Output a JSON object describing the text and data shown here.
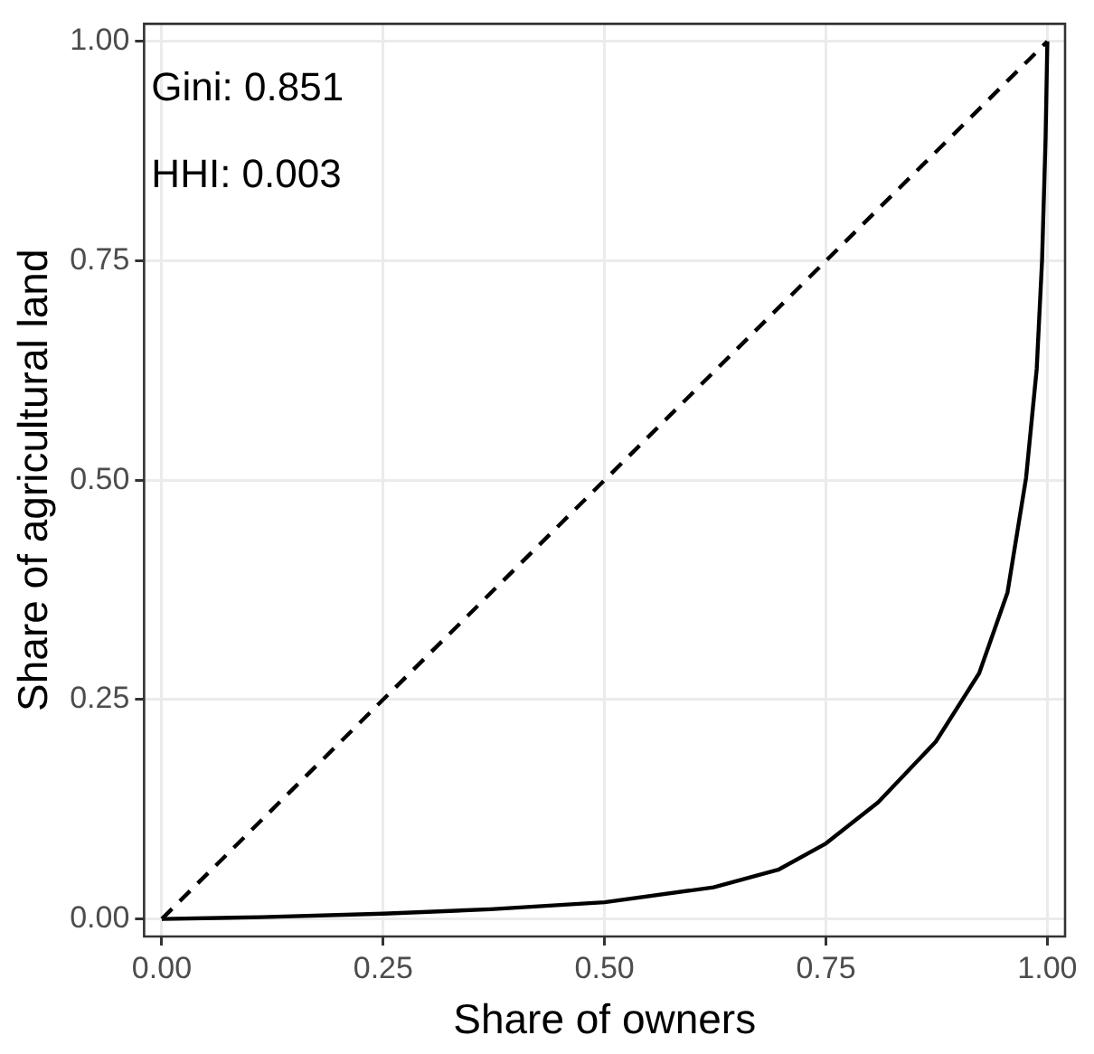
{
  "chart_data": {
    "type": "line",
    "xlabel": "Share of owners",
    "ylabel": "Share of agricultural land",
    "annotations": [
      "Gini: 0.851",
      "HHI: 0.003"
    ],
    "series": [
      {
        "color": "#000000",
        "line_style": "dashed",
        "x": [
          0,
          1
        ],
        "values": [
          0,
          1
        ]
      },
      {
        "color": "#000000",
        "line_style": "solid",
        "x": [
          0,
          0.112,
          0.25,
          0.371,
          0.5,
          0.623,
          0.696,
          0.75,
          0.809,
          0.874,
          0.923,
          0.955,
          0.976,
          0.988,
          0.994,
          0.998,
          1
        ],
        "values": [
          0,
          0.002,
          0.006,
          0.011,
          0.019,
          0.036,
          0.056,
          0.086,
          0.133,
          0.202,
          0.28,
          0.372,
          0.503,
          0.627,
          0.75,
          0.89,
          1
        ]
      }
    ],
    "xlim": [
      -0.02,
      1.02
    ],
    "ylim": [
      -0.02,
      1.02
    ],
    "xticks": [
      {
        "value": 0,
        "label": "0.00"
      },
      {
        "value": 0.25,
        "label": "0.25"
      },
      {
        "value": 0.5,
        "label": "0.50"
      },
      {
        "value": 0.75,
        "label": "0.75"
      },
      {
        "value": 1,
        "label": "1.00"
      }
    ],
    "yticks": [
      {
        "value": 0,
        "label": "0.00"
      },
      {
        "value": 0.25,
        "label": "0.25"
      },
      {
        "value": 0.5,
        "label": "0.50"
      },
      {
        "value": 0.75,
        "label": "0.75"
      },
      {
        "value": 1,
        "label": "1.00"
      }
    ],
    "grid": true,
    "legend": false,
    "marker": "none"
  }
}
